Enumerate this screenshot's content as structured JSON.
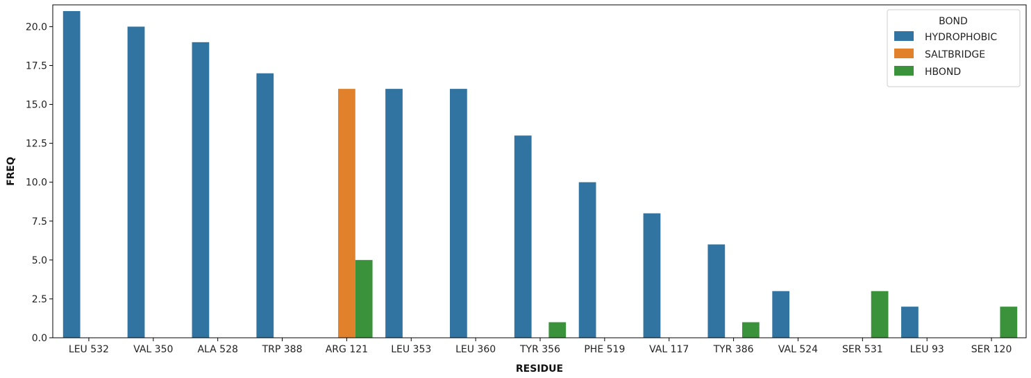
{
  "chart_data": {
    "type": "bar",
    "title": "",
    "xlabel": "RESIDUE",
    "ylabel": "FREQ",
    "ylim": [
      0,
      21.4
    ],
    "yticks": [
      0.0,
      2.5,
      5.0,
      7.5,
      10.0,
      12.5,
      15.0,
      17.5,
      20.0
    ],
    "ytick_labels": [
      "0.0",
      "2.5",
      "5.0",
      "7.5",
      "10.0",
      "12.5",
      "15.0",
      "17.5",
      "20.0"
    ],
    "categories": [
      "LEU 532",
      "VAL 350",
      "ALA 528",
      "TRP 388",
      "ARG 121",
      "LEU 353",
      "LEU 360",
      "TYR 356",
      "PHE 519",
      "VAL 117",
      "TYR 386",
      "VAL 524",
      "SER 531",
      "LEU 93",
      "SER 120"
    ],
    "series": [
      {
        "name": "HYDROPHOBIC",
        "color": "#3274a1",
        "values": [
          21,
          20,
          19,
          17,
          null,
          16,
          16,
          13,
          10,
          8,
          6,
          3,
          null,
          2,
          null
        ]
      },
      {
        "name": "SALTBRIDGE",
        "color": "#e1812c",
        "values": [
          null,
          null,
          null,
          null,
          16,
          null,
          null,
          null,
          null,
          null,
          null,
          null,
          null,
          null,
          null
        ]
      },
      {
        "name": "HBOND",
        "color": "#3a923a",
        "values": [
          null,
          null,
          null,
          null,
          5,
          null,
          null,
          1,
          null,
          null,
          1,
          null,
          3,
          null,
          2
        ]
      }
    ],
    "legend": {
      "title": "BOND",
      "position": "top-right"
    },
    "grid": false
  }
}
